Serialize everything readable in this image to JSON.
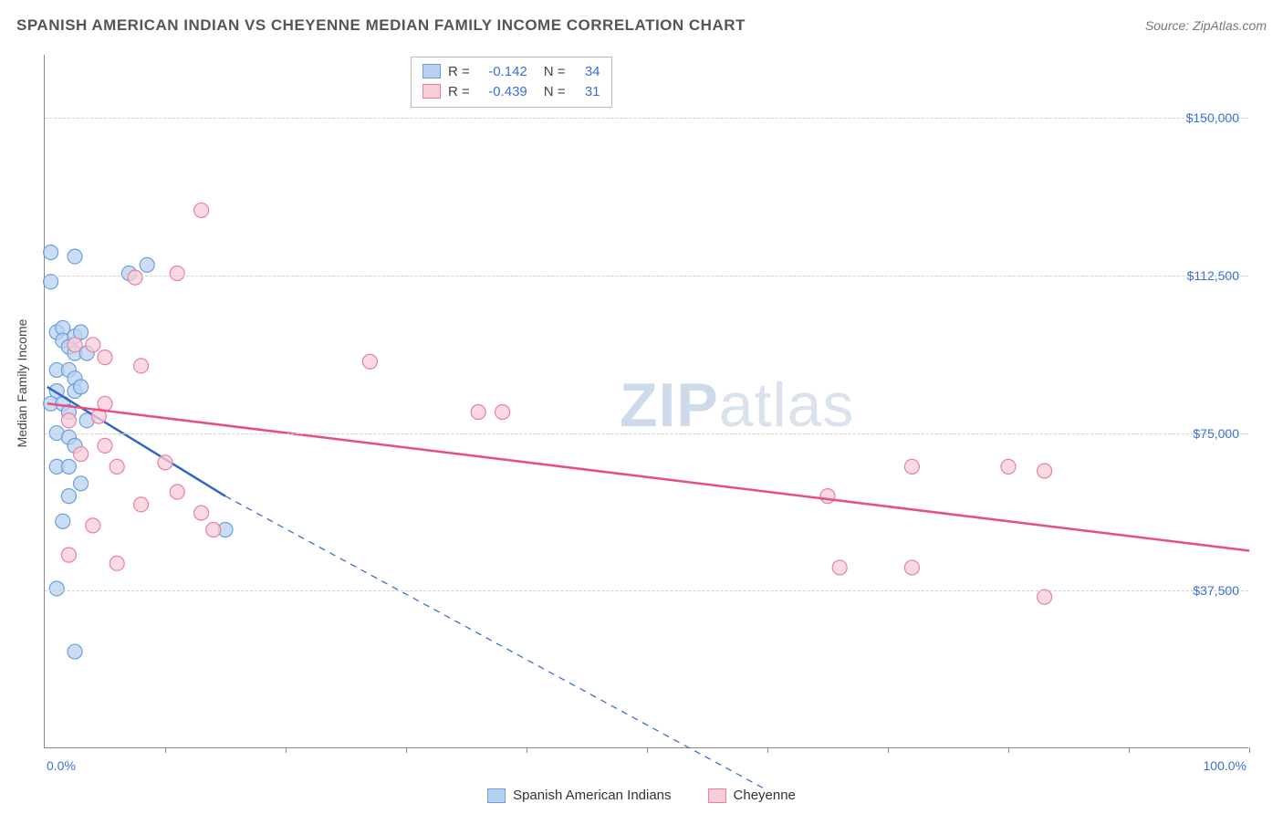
{
  "title": "SPANISH AMERICAN INDIAN VS CHEYENNE MEDIAN FAMILY INCOME CORRELATION CHART",
  "source": "Source: ZipAtlas.com",
  "watermark": {
    "bold": "ZIP",
    "light": "atlas"
  },
  "y_axis": {
    "label": "Median Family Income",
    "ticks": [
      37500,
      75000,
      112500,
      150000
    ],
    "tick_labels": [
      "$37,500",
      "$75,000",
      "$112,500",
      "$150,000"
    ],
    "min": 0,
    "max": 165000
  },
  "x_axis": {
    "min": 0,
    "max": 100,
    "label_left": "0.0%",
    "label_right": "100.0%",
    "tick_positions": [
      10,
      20,
      30,
      40,
      50,
      60,
      70,
      80,
      90,
      100
    ]
  },
  "series": [
    {
      "name": "Spanish American Indians",
      "fill": "#b9d1ee",
      "stroke": "#6a9fe0",
      "line_color": "#2f66c4",
      "r_value": "-0.142",
      "n_value": "34",
      "trend": {
        "x1": 0.2,
        "y1": 86000,
        "x2_solid": 15,
        "y2_solid": 60000,
        "x2_dash": 60,
        "y2_dash": -10000
      },
      "points": [
        [
          0.5,
          118000
        ],
        [
          0.5,
          111000
        ],
        [
          2.5,
          117000
        ],
        [
          7,
          113000
        ],
        [
          8.5,
          115000
        ],
        [
          1,
          99000
        ],
        [
          1.5,
          100000
        ],
        [
          1.5,
          97000
        ],
        [
          2,
          95500
        ],
        [
          2.5,
          94000
        ],
        [
          2.5,
          98000
        ],
        [
          3,
          99000
        ],
        [
          3.5,
          94000
        ],
        [
          1,
          90000
        ],
        [
          2,
          90000
        ],
        [
          2.5,
          88000
        ],
        [
          1,
          85000
        ],
        [
          0.5,
          82000
        ],
        [
          1.5,
          82000
        ],
        [
          2,
          80000
        ],
        [
          2.5,
          85000
        ],
        [
          3,
          86000
        ],
        [
          1,
          75000
        ],
        [
          2,
          74000
        ],
        [
          2.5,
          72000
        ],
        [
          1,
          67000
        ],
        [
          2,
          67000
        ],
        [
          3,
          63000
        ],
        [
          15,
          52000
        ],
        [
          1.5,
          54000
        ],
        [
          1,
          38000
        ],
        [
          2.5,
          23000
        ],
        [
          2,
          60000
        ],
        [
          3.5,
          78000
        ]
      ]
    },
    {
      "name": "Cheyenne",
      "fill": "#f7cdd7",
      "stroke": "#e97fa0",
      "line_color": "#e94f7e",
      "r_value": "-0.439",
      "n_value": "31",
      "trend": {
        "x1": 0.2,
        "y1": 82000,
        "x2_solid": 100,
        "y2_solid": 47000
      },
      "points": [
        [
          13,
          128000
        ],
        [
          11,
          113000
        ],
        [
          7.5,
          112000
        ],
        [
          8,
          91000
        ],
        [
          4,
          96000
        ],
        [
          5,
          93000
        ],
        [
          2.5,
          96000
        ],
        [
          27,
          92000
        ],
        [
          36,
          80000
        ],
        [
          5,
          82000
        ],
        [
          4.5,
          79000
        ],
        [
          2,
          78000
        ],
        [
          10,
          68000
        ],
        [
          6,
          67000
        ],
        [
          3,
          70000
        ],
        [
          5,
          72000
        ],
        [
          11,
          61000
        ],
        [
          8,
          58000
        ],
        [
          13,
          56000
        ],
        [
          14,
          52000
        ],
        [
          4,
          53000
        ],
        [
          6,
          44000
        ],
        [
          2,
          46000
        ],
        [
          72,
          67000
        ],
        [
          80,
          67000
        ],
        [
          83,
          66000
        ],
        [
          65,
          60000
        ],
        [
          72,
          43000
        ],
        [
          83,
          36000
        ],
        [
          66,
          43000
        ],
        [
          38,
          80000
        ]
      ]
    }
  ],
  "legend": {
    "items": [
      "Spanish American Indians",
      "Cheyenne"
    ]
  },
  "styling": {
    "background": "#ffffff",
    "grid_color": "#d0d0d0",
    "axis_color": "#888888",
    "text_color": "#555555",
    "value_color": "#3b6fd4",
    "point_radius": 8,
    "point_opacity": 0.75,
    "line_width_solid": 2.5,
    "line_width_dash": 1.2,
    "title_fontsize": 17,
    "tick_fontsize": 14
  }
}
